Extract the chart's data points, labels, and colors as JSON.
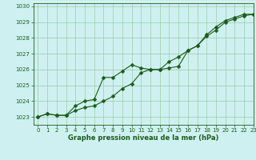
{
  "bg_color": "#cff0f0",
  "line_color": "#1a5c1a",
  "grid_color": "#99ccaa",
  "xlabel": "Graphe pression niveau de la mer (hPa)",
  "ylim": [
    1022.5,
    1030.2
  ],
  "xlim": [
    -0.5,
    23
  ],
  "yticks": [
    1023,
    1024,
    1025,
    1026,
    1027,
    1028,
    1029,
    1030
  ],
  "xticks": [
    0,
    1,
    2,
    3,
    4,
    5,
    6,
    7,
    8,
    9,
    10,
    11,
    12,
    13,
    14,
    15,
    16,
    17,
    18,
    19,
    20,
    21,
    22,
    23
  ],
  "series1": [
    1023.0,
    1023.2,
    1023.1,
    1023.1,
    1023.7,
    1024.0,
    1024.1,
    1025.5,
    1025.5,
    1025.9,
    1026.3,
    1026.1,
    1026.0,
    1026.0,
    1026.1,
    1026.2,
    1027.2,
    1027.5,
    1028.1,
    1028.5,
    1029.0,
    1029.2,
    1029.4,
    1029.5
  ],
  "series2": [
    1023.0,
    1023.2,
    1023.1,
    1023.1,
    1023.4,
    1023.6,
    1023.7,
    1024.0,
    1024.3,
    1024.8,
    1025.1,
    1025.8,
    1026.0,
    1026.0,
    1026.5,
    1026.8,
    1027.2,
    1027.5,
    1028.2,
    1028.7,
    1029.1,
    1029.3,
    1029.5,
    1029.5
  ],
  "markersize": 2.5,
  "linewidth": 0.8,
  "tick_fontsize": 5.0,
  "xlabel_fontsize": 6.0
}
